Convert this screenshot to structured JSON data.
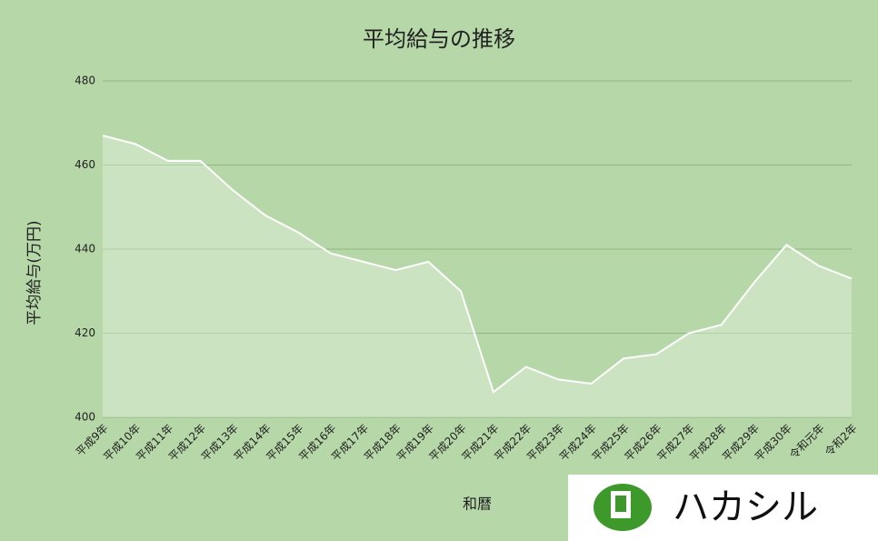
{
  "chart_data": {
    "type": "area",
    "title": "平均給与の推移",
    "x_label": "和暦",
    "y_label": "平均給与(万円)",
    "categories": [
      "平成9年",
      "平成10年",
      "平成11年",
      "平成12年",
      "平成13年",
      "平成14年",
      "平成15年",
      "平成16年",
      "平成17年",
      "平成18年",
      "平成19年",
      "平成20年",
      "平成21年",
      "平成22年",
      "平成23年",
      "平成24年",
      "平成25年",
      "平成26年",
      "平成27年",
      "平成28年",
      "平成29年",
      "平成30年",
      "令和元年",
      "令和2年"
    ],
    "values": [
      467,
      465,
      461,
      461,
      454,
      448,
      444,
      439,
      437,
      435,
      437,
      430,
      406,
      412,
      409,
      408,
      414,
      415,
      420,
      422,
      432,
      441,
      436,
      433
    ],
    "color": "#ffffff",
    "ylim": [
      400,
      480
    ],
    "yticks": [
      400,
      420,
      440,
      460,
      480
    ],
    "grid": true
  },
  "logo": {
    "text": "ハカシル"
  }
}
